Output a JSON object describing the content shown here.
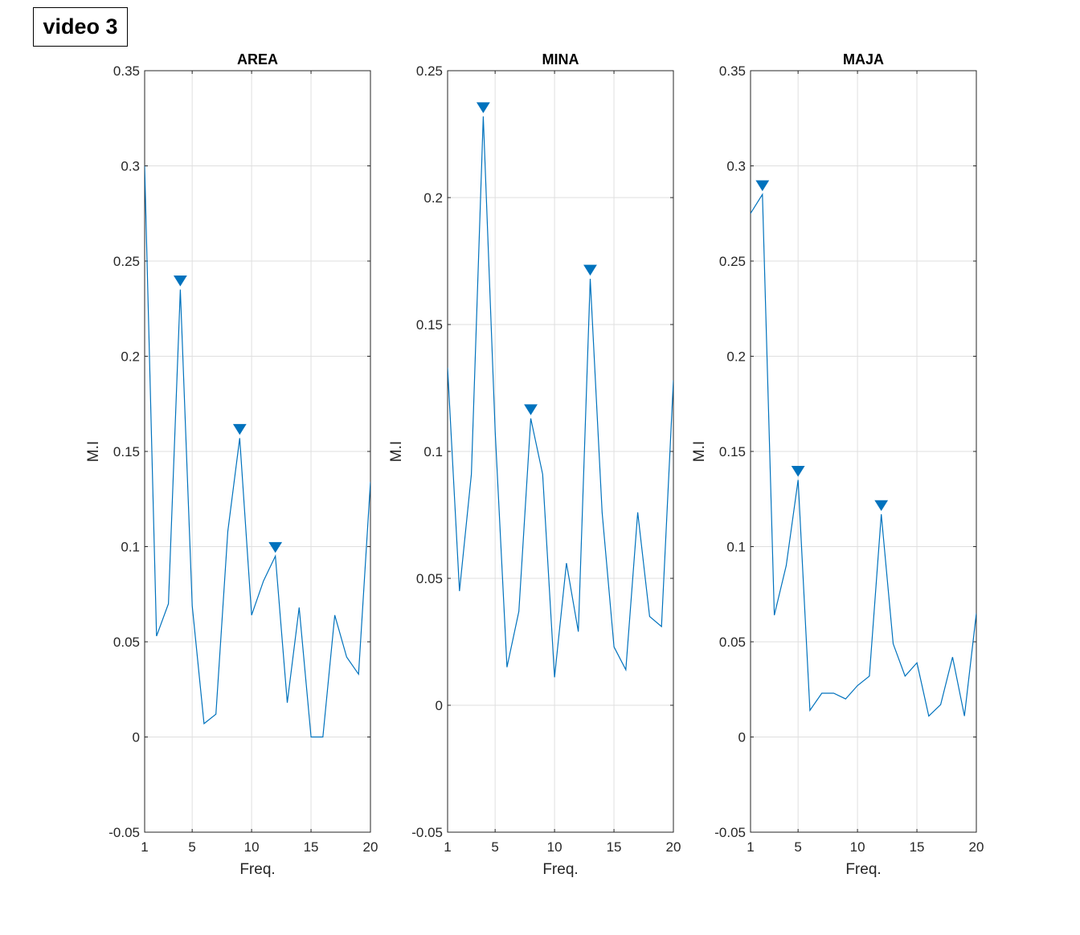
{
  "figure_title": "video 3",
  "chart_data": [
    {
      "type": "line",
      "title": "AREA",
      "xlabel": "Freq.",
      "ylabel": "M.I",
      "xlim": [
        1,
        20
      ],
      "ylim": [
        -0.05,
        0.35
      ],
      "xticks": [
        1,
        5,
        10,
        15,
        20
      ],
      "yticks": [
        -0.05,
        0,
        0.05,
        0.1,
        0.15,
        0.2,
        0.25,
        0.3,
        0.35
      ],
      "ytick_labels": [
        "-0.05",
        "0",
        "0.05",
        "0.1",
        "0.15",
        "0.2",
        "0.25",
        "0.3",
        "0.35"
      ],
      "grid": true,
      "line_color": "#0072BD",
      "x": [
        1,
        2,
        3,
        4,
        5,
        6,
        7,
        8,
        9,
        10,
        11,
        12,
        13,
        14,
        15,
        16,
        17,
        18,
        19,
        20
      ],
      "y": [
        0.3,
        0.053,
        0.07,
        0.235,
        0.069,
        0.007,
        0.012,
        0.108,
        0.157,
        0.064,
        0.082,
        0.095,
        0.018,
        0.068,
        0.0,
        0.0,
        0.064,
        0.042,
        0.033,
        0.134
      ],
      "peaks_x": [
        4,
        9,
        12
      ],
      "peaks_y": [
        0.235,
        0.157,
        0.095
      ]
    },
    {
      "type": "line",
      "title": "MINA",
      "xlabel": "Freq.",
      "ylabel": "M.I",
      "xlim": [
        1,
        20
      ],
      "ylim": [
        -0.05,
        0.25
      ],
      "xticks": [
        1,
        5,
        10,
        15,
        20
      ],
      "yticks": [
        -0.05,
        0,
        0.05,
        0.1,
        0.15,
        0.2,
        0.25
      ],
      "ytick_labels": [
        "-0.05",
        "0",
        "0.05",
        "0.1",
        "0.15",
        "0.2",
        "0.25"
      ],
      "grid": true,
      "line_color": "#0072BD",
      "x": [
        1,
        2,
        3,
        4,
        5,
        6,
        7,
        8,
        9,
        10,
        11,
        12,
        13,
        14,
        15,
        16,
        17,
        18,
        19,
        20
      ],
      "y": [
        0.133,
        0.045,
        0.091,
        0.232,
        0.108,
        0.015,
        0.037,
        0.113,
        0.091,
        0.011,
        0.056,
        0.029,
        0.168,
        0.076,
        0.023,
        0.014,
        0.076,
        0.035,
        0.031,
        0.128
      ],
      "peaks_x": [
        4,
        8,
        13
      ],
      "peaks_y": [
        0.232,
        0.113,
        0.168
      ]
    },
    {
      "type": "line",
      "title": "MAJA",
      "xlabel": "Freq.",
      "ylabel": "M.I",
      "xlim": [
        1,
        20
      ],
      "ylim": [
        -0.05,
        0.35
      ],
      "xticks": [
        1,
        5,
        10,
        15,
        20
      ],
      "yticks": [
        -0.05,
        0,
        0.05,
        0.1,
        0.15,
        0.2,
        0.25,
        0.3,
        0.35
      ],
      "ytick_labels": [
        "-0.05",
        "0",
        "0.05",
        "0.1",
        "0.15",
        "0.2",
        "0.25",
        "0.3",
        "0.35"
      ],
      "grid": true,
      "line_color": "#0072BD",
      "x": [
        1,
        2,
        3,
        4,
        5,
        6,
        7,
        8,
        9,
        10,
        11,
        12,
        13,
        14,
        15,
        16,
        17,
        18,
        19,
        20
      ],
      "y": [
        0.275,
        0.285,
        0.064,
        0.09,
        0.135,
        0.014,
        0.023,
        0.023,
        0.02,
        0.027,
        0.032,
        0.117,
        0.049,
        0.032,
        0.039,
        0.011,
        0.017,
        0.042,
        0.011,
        0.065
      ],
      "peaks_x": [
        2,
        5,
        12
      ],
      "peaks_y": [
        0.285,
        0.135,
        0.117
      ]
    }
  ]
}
